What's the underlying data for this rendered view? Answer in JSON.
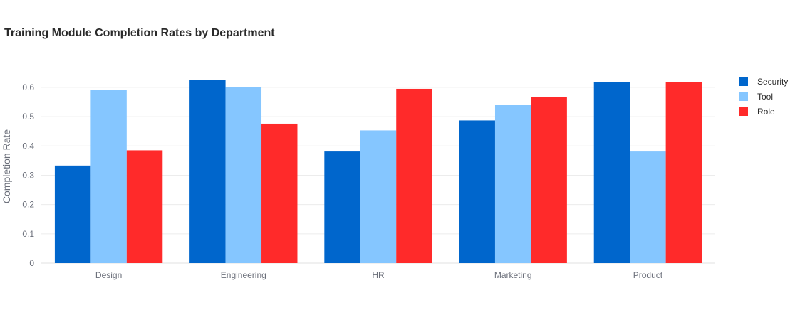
{
  "chart_data": {
    "type": "bar",
    "title": "Training Module Completion Rates by Department",
    "xlabel": "",
    "ylabel": "Completion Rate",
    "categories": [
      "Design",
      "Engineering",
      "HR",
      "Marketing",
      "Product"
    ],
    "series": [
      {
        "name": "Security",
        "color": "#0066cc",
        "values": [
          0.333,
          0.625,
          0.381,
          0.487,
          0.619
        ]
      },
      {
        "name": "Tool",
        "color": "#85c6ff",
        "values": [
          0.59,
          0.6,
          0.453,
          0.54,
          0.381
        ]
      },
      {
        "name": "Role",
        "color": "#ff2a2a",
        "values": [
          0.385,
          0.476,
          0.595,
          0.568,
          0.619
        ]
      }
    ],
    "ylim": [
      0,
      0.658
    ],
    "yticks": [
      0,
      0.1,
      0.2,
      0.3,
      0.4,
      0.5,
      0.6
    ],
    "ytick_labels": [
      "0",
      "0.1",
      "0.2",
      "0.3",
      "0.4",
      "0.5",
      "0.6"
    ],
    "grid": true,
    "legend_position": "top-right"
  }
}
